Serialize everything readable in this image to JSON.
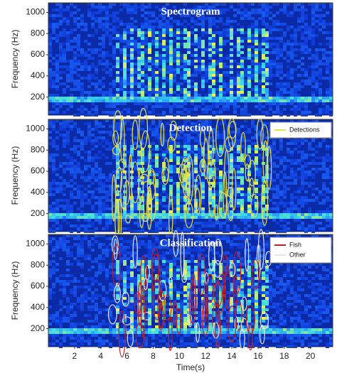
{
  "chart_data": [
    {
      "type": "heatmap",
      "title": "Spectrogram",
      "ylabel": "Frequency (Hz)",
      "ylim": [
        30,
        1090
      ],
      "yticks": [
        200,
        400,
        600,
        800,
        1000
      ],
      "xlim": [
        0,
        21.7
      ]
    },
    {
      "type": "heatmap",
      "title": "Detection",
      "ylabel": "Frequency (Hz)",
      "ylim": [
        30,
        1090
      ],
      "yticks": [
        200,
        400,
        600,
        800,
        1000
      ],
      "xlim": [
        0,
        21.7
      ],
      "series": [
        {
          "name": "Detections",
          "color": "#e6e04a"
        }
      ]
    },
    {
      "type": "heatmap",
      "title": "Classification",
      "ylabel": "Frequency (Hz)",
      "xlabel": "Time(s)",
      "ylim": [
        30,
        1090
      ],
      "yticks": [
        200,
        400,
        600,
        800,
        1000
      ],
      "xlim": [
        0,
        21.7
      ],
      "xticks": [
        2,
        4,
        6,
        8,
        10,
        12,
        14,
        16,
        18,
        20
      ],
      "series": [
        {
          "name": "Fish",
          "color": "#c0202a"
        },
        {
          "name": "Other",
          "color": "#e4e4e4"
        }
      ]
    }
  ]
}
